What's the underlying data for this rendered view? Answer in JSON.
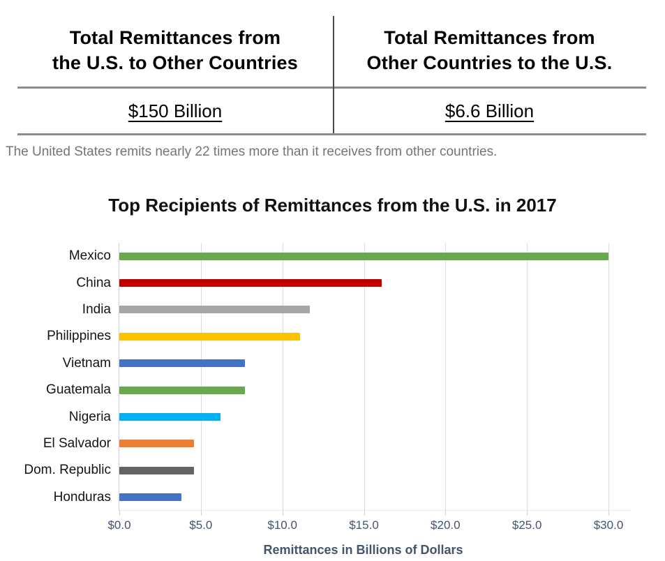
{
  "comparison_table": {
    "left": {
      "header_line1": "Total Remittances from",
      "header_line2": "the U.S. to Other Countries",
      "value": "$150 Billion"
    },
    "right": {
      "header_line1": "Total Remittances from",
      "header_line2": "Other Countries to the U.S.",
      "value": "$6.6 Billion"
    }
  },
  "caption": "The United States remits nearly 22 times more than it receives from other countries.",
  "chart_data": {
    "type": "bar",
    "orientation": "horizontal",
    "title": "Top Recipients of Remittances from the U.S. in 2017",
    "categories": [
      "Mexico",
      "China",
      "India",
      "Philippines",
      "Vietnam",
      "Guatemala",
      "Nigeria",
      "El Salvador",
      "Dom. Republic",
      "Honduras"
    ],
    "values": [
      30.0,
      16.1,
      11.7,
      11.1,
      7.7,
      7.7,
      6.2,
      4.6,
      4.6,
      3.8
    ],
    "bar_colors": [
      "#6aa84f",
      "#c00000",
      "#a6a6a6",
      "#ffc000",
      "#4472c4",
      "#6aa84f",
      "#00b0f0",
      "#ed7d31",
      "#636363",
      "#4472c4"
    ],
    "xlabel": "Remittances in Billions of Dollars",
    "xlim": [
      0,
      30
    ],
    "x_tick_labels": [
      "$0.0",
      "$5.0",
      "$10.0",
      "$15.0",
      "$20.0",
      "$25.0",
      "$30.0"
    ],
    "x_tick_values": [
      0,
      5,
      10,
      15,
      20,
      25,
      30
    ],
    "grid": true,
    "legend": "none",
    "colors": {
      "axis_text": "#44546a",
      "gridline": "#dadde2",
      "table_line": "#8c8c8c",
      "caption_text": "#757575"
    }
  }
}
